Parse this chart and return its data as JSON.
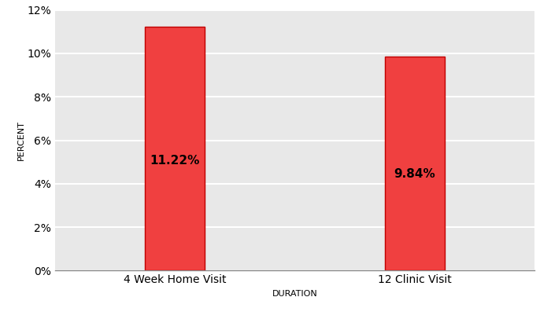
{
  "categories": [
    "4 Week Home Visit",
    "12 Clinic Visit"
  ],
  "values": [
    11.22,
    9.84
  ],
  "bar_color": "#F04040",
  "bar_edge_color": "#C00000",
  "bar_labels": [
    "11.22%",
    "9.84%"
  ],
  "ylabel": "PERCENT",
  "xlabel": "DURATION",
  "ylim": [
    0,
    12
  ],
  "ytick_values": [
    0,
    2,
    4,
    6,
    8,
    10,
    12
  ],
  "ytick_labels": [
    "0%",
    "2%",
    "4%",
    "6%",
    "8%",
    "10%",
    "12%"
  ],
  "plot_bg_color": "#E8E8E8",
  "outer_bg_color": "#FFFFFF",
  "bar_label_fontsize": 11,
  "bar_label_fontweight": "bold",
  "axis_label_fontsize": 8,
  "tick_label_fontsize": 10,
  "bar_width": 0.25,
  "x_positions": [
    1,
    2
  ],
  "xlim": [
    0.5,
    2.5
  ]
}
